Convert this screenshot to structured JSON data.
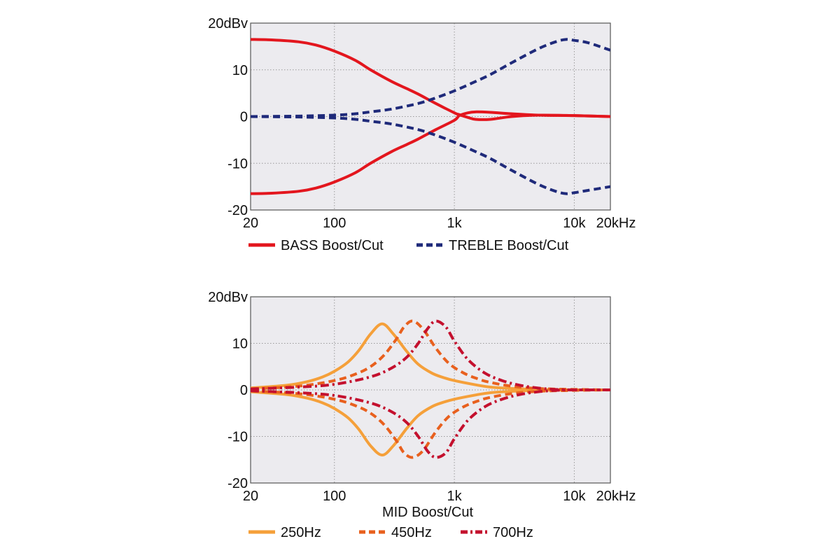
{
  "chart_data": [
    {
      "type": "line",
      "x_scale": "log",
      "xlim": [
        20,
        20000
      ],
      "ylim": [
        -20,
        20
      ],
      "grid": true,
      "legend_position": "bottom",
      "x_ticks": [
        {
          "value": 20,
          "label": "20"
        },
        {
          "value": 100,
          "label": "100"
        },
        {
          "value": 1000,
          "label": "1k"
        },
        {
          "value": 10000,
          "label": "10k"
        },
        {
          "value": 20000,
          "label": "20kHz"
        }
      ],
      "y_ticks": [
        {
          "value": 20,
          "label": "20dBv"
        },
        {
          "value": 10,
          "label": "10"
        },
        {
          "value": 0,
          "label": "0"
        },
        {
          "value": -10,
          "label": "-10"
        },
        {
          "value": -20,
          "label": "-20"
        }
      ],
      "xlabel": "",
      "ylabel": "",
      "series": [
        {
          "name": "BASS Boost/Cut",
          "legend_label": "BASS Boost/Cut",
          "color": "#e3161e",
          "dash": "solid",
          "curves": [
            {
              "x": [
                20,
                30,
                50,
                70,
                100,
                150,
                200,
                300,
                400,
                500,
                700,
                1000,
                1100,
                1300,
                1500,
                2000,
                3000,
                5000,
                10000,
                20000
              ],
              "y": [
                16.5,
                16.4,
                16,
                15.3,
                14,
                12,
                10,
                7.5,
                6,
                4.8,
                2.8,
                0.8,
                0.4,
                -0.2,
                -0.6,
                -0.6,
                0,
                0.3,
                0.2,
                0
              ]
            },
            {
              "x": [
                20,
                30,
                50,
                70,
                100,
                150,
                200,
                300,
                400,
                500,
                700,
                1000,
                1100,
                1300,
                1500,
                2000,
                3000,
                5000,
                10000,
                20000
              ],
              "y": [
                -16.5,
                -16.4,
                -16,
                -15.3,
                -14,
                -12,
                -10,
                -7.5,
                -6,
                -4.8,
                -2.8,
                -0.8,
                0.2,
                0.8,
                1,
                0.9,
                0.6,
                0.3,
                0.2,
                0
              ]
            }
          ]
        },
        {
          "name": "TREBLE Boost/Cut",
          "legend_label": "TREBLE Boost/Cut",
          "color": "#1f2a7a",
          "dash": "dashed",
          "curves": [
            {
              "x": [
                20,
                50,
                100,
                150,
                200,
                300,
                500,
                700,
                1000,
                1500,
                2000,
                3000,
                5000,
                7000,
                8500,
                10000,
                13000,
                20000
              ],
              "y": [
                0,
                0.1,
                0.3,
                0.6,
                1,
                1.6,
                2.8,
                4,
                5.5,
                7.5,
                9,
                11.5,
                14.5,
                16,
                16.5,
                16.3,
                15.8,
                14.2
              ]
            },
            {
              "x": [
                20,
                50,
                100,
                150,
                200,
                300,
                500,
                700,
                1000,
                1500,
                2000,
                3000,
                5000,
                7000,
                8500,
                10000,
                13000,
                20000
              ],
              "y": [
                0,
                -0.1,
                -0.3,
                -0.6,
                -1,
                -1.6,
                -2.8,
                -4,
                -5.5,
                -7.5,
                -9,
                -11.5,
                -14.5,
                -16,
                -16.5,
                -16.3,
                -15.8,
                -15
              ]
            }
          ]
        }
      ]
    },
    {
      "type": "line",
      "x_scale": "log",
      "xlim": [
        20,
        20000
      ],
      "ylim": [
        -20,
        20
      ],
      "grid": true,
      "legend_position": "bottom",
      "x_ticks": [
        {
          "value": 20,
          "label": "20"
        },
        {
          "value": 100,
          "label": "100"
        },
        {
          "value": 1000,
          "label": "1k"
        },
        {
          "value": 10000,
          "label": "10k"
        },
        {
          "value": 20000,
          "label": "20kHz"
        }
      ],
      "y_ticks": [
        {
          "value": 20,
          "label": "20dBv"
        },
        {
          "value": 10,
          "label": "10"
        },
        {
          "value": 0,
          "label": "0"
        },
        {
          "value": -10,
          "label": "-10"
        },
        {
          "value": -20,
          "label": "-20"
        }
      ],
      "xlabel": "MID Boost/Cut",
      "ylabel": "",
      "series": [
        {
          "name": "250Hz",
          "legend_label": "250Hz",
          "color": "#f5a03a",
          "dash": "solid",
          "curves": [
            {
              "x": [
                20,
                40,
                60,
                80,
                100,
                130,
                160,
                200,
                250,
                310,
                400,
                500,
                650,
                800,
                1000,
                1500,
                2000,
                3000,
                5000,
                10000,
                20000
              ],
              "y": [
                0.4,
                1,
                1.8,
                2.8,
                4,
                6,
                8.5,
                12,
                14.2,
                12,
                8.3,
                5.5,
                3.6,
                2.7,
                2,
                1.1,
                0.6,
                0.3,
                0.1,
                0,
                0
              ]
            },
            {
              "x": [
                20,
                40,
                60,
                80,
                100,
                130,
                160,
                200,
                250,
                310,
                400,
                500,
                650,
                800,
                1000,
                1500,
                2000,
                3000,
                5000,
                10000,
                20000
              ],
              "y": [
                -0.4,
                -1,
                -1.8,
                -2.8,
                -4,
                -6,
                -8.5,
                -12,
                -14,
                -12,
                -8.3,
                -5.5,
                -3.6,
                -2.7,
                -2,
                -1.1,
                -0.6,
                -0.3,
                -0.1,
                0,
                0
              ]
            }
          ]
        },
        {
          "name": "450Hz",
          "legend_label": "450Hz",
          "color": "#e8601e",
          "dash": "dashed",
          "curves": [
            {
              "x": [
                20,
                50,
                100,
                150,
                200,
                260,
                330,
                380,
                450,
                550,
                700,
                900,
                1200,
                1600,
                2000,
                3000,
                5000,
                10000,
                20000
              ],
              "y": [
                0.2,
                0.8,
                2,
                3.4,
                5,
                7.5,
                11,
                13.5,
                14.8,
                13,
                9,
                5.7,
                3.6,
                2.3,
                1.6,
                0.8,
                0.3,
                0.1,
                0
              ]
            },
            {
              "x": [
                20,
                50,
                100,
                150,
                200,
                260,
                330,
                380,
                450,
                550,
                700,
                900,
                1200,
                1600,
                2000,
                3000,
                5000,
                10000,
                20000
              ],
              "y": [
                -0.2,
                -0.8,
                -2,
                -3.4,
                -5,
                -7.5,
                -11,
                -13.5,
                -14.5,
                -13,
                -9,
                -5.7,
                -3.6,
                -2.3,
                -1.6,
                -0.8,
                -0.3,
                -0.1,
                0
              ]
            }
          ]
        },
        {
          "name": "700Hz",
          "legend_label": "700Hz",
          "color": "#c4102e",
          "dash": "dashdot",
          "curves": [
            {
              "x": [
                20,
                50,
                100,
                200,
                300,
                400,
                500,
                600,
                700,
                850,
                1000,
                1300,
                1800,
                2500,
                3500,
                5000,
                7000,
                10000,
                20000
              ],
              "y": [
                0.2,
                0.6,
                1.2,
                2.8,
                4.7,
                7,
                10,
                13.2,
                14.8,
                13.5,
                10.5,
                6.5,
                3.6,
                2,
                1,
                0.4,
                0.1,
                0,
                0
              ]
            },
            {
              "x": [
                20,
                50,
                100,
                200,
                300,
                400,
                500,
                600,
                700,
                850,
                1000,
                1300,
                1800,
                2500,
                3500,
                5000,
                7000,
                10000,
                20000
              ],
              "y": [
                -0.2,
                -0.6,
                -1.2,
                -2.8,
                -4.7,
                -7,
                -10,
                -13.2,
                -14.5,
                -13.5,
                -10.5,
                -6.5,
                -3.6,
                -2,
                -1,
                -0.4,
                -0.1,
                0,
                0
              ]
            }
          ]
        }
      ]
    }
  ]
}
